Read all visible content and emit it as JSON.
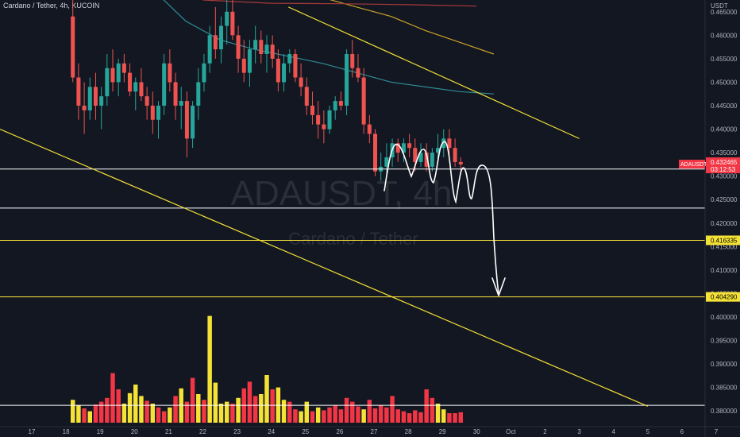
{
  "header": {
    "symbol_line": "Cardano / Tether, 4h, KUCOIN"
  },
  "watermark": {
    "symbol": "ADAUSDT, 4h",
    "name": "Cardano / Tether"
  },
  "colors": {
    "background": "#131722",
    "bull": "#26a69a",
    "bear": "#ef5350",
    "volume_up": "#f5e236",
    "volume_down": "#f23645",
    "trendline": "#f5e236",
    "hline_white": "#ffffff",
    "ma_teal": "#2e8c95",
    "ma_orange": "#c9a227",
    "ma_red": "#a83a3a",
    "axis_text": "#b2b5be",
    "label_text": "#000000",
    "current_label_bg": "#f23645"
  },
  "chart_data": {
    "type": "candlestick",
    "price_axis": {
      "unit": "USDT",
      "range": [
        0.3775,
        0.4675
      ],
      "ticks": [
        "0.465000",
        "0.460000",
        "0.455000",
        "0.450000",
        "0.445000",
        "0.440000",
        "0.435000",
        "0.430000",
        "0.425000",
        "0.420000",
        "0.415000",
        "0.410000",
        "0.405000",
        "0.400000",
        "0.395000",
        "0.390000",
        "0.385000",
        "0.380000"
      ]
    },
    "time_axis": {
      "labels": [
        {
          "text": "17",
          "x": 0
        },
        {
          "text": "18",
          "x": 1
        },
        {
          "text": "19",
          "x": 2
        },
        {
          "text": "20",
          "x": 3
        },
        {
          "text": "21",
          "x": 4
        },
        {
          "text": "22",
          "x": 5
        },
        {
          "text": "23",
          "x": 6
        },
        {
          "text": "24",
          "x": 7
        },
        {
          "text": "25",
          "x": 8
        },
        {
          "text": "26",
          "x": 9
        },
        {
          "text": "27",
          "x": 10
        },
        {
          "text": "28",
          "x": 11
        },
        {
          "text": "29",
          "x": 12
        },
        {
          "text": "30",
          "x": 13
        },
        {
          "text": "Oct",
          "x": 14
        },
        {
          "text": "2",
          "x": 15
        },
        {
          "text": "3",
          "x": 16
        },
        {
          "text": "4",
          "x": 17
        },
        {
          "text": "5",
          "x": 18
        },
        {
          "text": "6",
          "x": 19
        },
        {
          "text": "7",
          "x": 20
        }
      ]
    },
    "candles": [
      {
        "o": 0.464,
        "h": 0.468,
        "l": 0.45,
        "c": 0.451
      },
      {
        "o": 0.451,
        "h": 0.454,
        "l": 0.442,
        "c": 0.445
      },
      {
        "o": 0.445,
        "h": 0.45,
        "l": 0.439,
        "c": 0.444
      },
      {
        "o": 0.444,
        "h": 0.451,
        "l": 0.442,
        "c": 0.449
      },
      {
        "o": 0.449,
        "h": 0.452,
        "l": 0.442,
        "c": 0.445
      },
      {
        "o": 0.445,
        "h": 0.449,
        "l": 0.44,
        "c": 0.447
      },
      {
        "o": 0.447,
        "h": 0.456,
        "l": 0.445,
        "c": 0.453
      },
      {
        "o": 0.453,
        "h": 0.457,
        "l": 0.448,
        "c": 0.45
      },
      {
        "o": 0.45,
        "h": 0.455,
        "l": 0.447,
        "c": 0.454
      },
      {
        "o": 0.454,
        "h": 0.456,
        "l": 0.45,
        "c": 0.452
      },
      {
        "o": 0.452,
        "h": 0.454,
        "l": 0.447,
        "c": 0.448
      },
      {
        "o": 0.448,
        "h": 0.451,
        "l": 0.444,
        "c": 0.45
      },
      {
        "o": 0.45,
        "h": 0.453,
        "l": 0.446,
        "c": 0.447
      },
      {
        "o": 0.447,
        "h": 0.449,
        "l": 0.442,
        "c": 0.445
      },
      {
        "o": 0.445,
        "h": 0.448,
        "l": 0.439,
        "c": 0.442
      },
      {
        "o": 0.442,
        "h": 0.446,
        "l": 0.438,
        "c": 0.445
      },
      {
        "o": 0.445,
        "h": 0.456,
        "l": 0.443,
        "c": 0.454
      },
      {
        "o": 0.454,
        "h": 0.457,
        "l": 0.448,
        "c": 0.45
      },
      {
        "o": 0.45,
        "h": 0.452,
        "l": 0.442,
        "c": 0.445
      },
      {
        "o": 0.445,
        "h": 0.449,
        "l": 0.44,
        "c": 0.446
      },
      {
        "o": 0.446,
        "h": 0.448,
        "l": 0.434,
        "c": 0.438
      },
      {
        "o": 0.438,
        "h": 0.446,
        "l": 0.436,
        "c": 0.445
      },
      {
        "o": 0.445,
        "h": 0.453,
        "l": 0.442,
        "c": 0.45
      },
      {
        "o": 0.45,
        "h": 0.456,
        "l": 0.448,
        "c": 0.454
      },
      {
        "o": 0.454,
        "h": 0.462,
        "l": 0.452,
        "c": 0.46
      },
      {
        "o": 0.46,
        "h": 0.466,
        "l": 0.455,
        "c": 0.457
      },
      {
        "o": 0.457,
        "h": 0.464,
        "l": 0.454,
        "c": 0.462
      },
      {
        "o": 0.462,
        "h": 0.468,
        "l": 0.458,
        "c": 0.465
      },
      {
        "o": 0.465,
        "h": 0.468,
        "l": 0.459,
        "c": 0.46
      },
      {
        "o": 0.46,
        "h": 0.462,
        "l": 0.452,
        "c": 0.455
      },
      {
        "o": 0.455,
        "h": 0.459,
        "l": 0.45,
        "c": 0.452
      },
      {
        "o": 0.452,
        "h": 0.459,
        "l": 0.449,
        "c": 0.457
      },
      {
        "o": 0.457,
        "h": 0.462,
        "l": 0.454,
        "c": 0.459
      },
      {
        "o": 0.459,
        "h": 0.461,
        "l": 0.454,
        "c": 0.456
      },
      {
        "o": 0.456,
        "h": 0.46,
        "l": 0.452,
        "c": 0.458
      },
      {
        "o": 0.458,
        "h": 0.46,
        "l": 0.453,
        "c": 0.455
      },
      {
        "o": 0.455,
        "h": 0.457,
        "l": 0.448,
        "c": 0.45
      },
      {
        "o": 0.45,
        "h": 0.456,
        "l": 0.448,
        "c": 0.454
      },
      {
        "o": 0.454,
        "h": 0.457,
        "l": 0.452,
        "c": 0.456
      },
      {
        "o": 0.456,
        "h": 0.457,
        "l": 0.45,
        "c": 0.451
      },
      {
        "o": 0.451,
        "h": 0.454,
        "l": 0.447,
        "c": 0.449
      },
      {
        "o": 0.449,
        "h": 0.451,
        "l": 0.443,
        "c": 0.445
      },
      {
        "o": 0.445,
        "h": 0.448,
        "l": 0.441,
        "c": 0.443
      },
      {
        "o": 0.443,
        "h": 0.446,
        "l": 0.438,
        "c": 0.441
      },
      {
        "o": 0.441,
        "h": 0.444,
        "l": 0.437,
        "c": 0.44
      },
      {
        "o": 0.44,
        "h": 0.445,
        "l": 0.439,
        "c": 0.444
      },
      {
        "o": 0.444,
        "h": 0.447,
        "l": 0.442,
        "c": 0.446
      },
      {
        "o": 0.446,
        "h": 0.448,
        "l": 0.444,
        "c": 0.445
      },
      {
        "o": 0.445,
        "h": 0.457,
        "l": 0.443,
        "c": 0.456
      },
      {
        "o": 0.456,
        "h": 0.459,
        "l": 0.451,
        "c": 0.453
      },
      {
        "o": 0.453,
        "h": 0.456,
        "l": 0.45,
        "c": 0.451
      },
      {
        "o": 0.451,
        "h": 0.453,
        "l": 0.439,
        "c": 0.441
      },
      {
        "o": 0.441,
        "h": 0.443,
        "l": 0.437,
        "c": 0.439
      },
      {
        "o": 0.439,
        "h": 0.44,
        "l": 0.43,
        "c": 0.431
      },
      {
        "o": 0.431,
        "h": 0.435,
        "l": 0.429,
        "c": 0.432
      },
      {
        "o": 0.432,
        "h": 0.437,
        "l": 0.43,
        "c": 0.434
      },
      {
        "o": 0.434,
        "h": 0.438,
        "l": 0.432,
        "c": 0.437
      },
      {
        "o": 0.437,
        "h": 0.438,
        "l": 0.433,
        "c": 0.435
      },
      {
        "o": 0.435,
        "h": 0.438,
        "l": 0.433,
        "c": 0.437
      },
      {
        "o": 0.437,
        "h": 0.439,
        "l": 0.434,
        "c": 0.436
      },
      {
        "o": 0.436,
        "h": 0.438,
        "l": 0.431,
        "c": 0.433
      },
      {
        "o": 0.433,
        "h": 0.437,
        "l": 0.432,
        "c": 0.435
      },
      {
        "o": 0.435,
        "h": 0.437,
        "l": 0.431,
        "c": 0.432
      },
      {
        "o": 0.432,
        "h": 0.436,
        "l": 0.431,
        "c": 0.435
      },
      {
        "o": 0.435,
        "h": 0.439,
        "l": 0.433,
        "c": 0.436
      },
      {
        "o": 0.436,
        "h": 0.44,
        "l": 0.434,
        "c": 0.438
      },
      {
        "o": 0.438,
        "h": 0.44,
        "l": 0.434,
        "c": 0.436
      },
      {
        "o": 0.436,
        "h": 0.438,
        "l": 0.432,
        "c": 0.433
      },
      {
        "o": 0.433,
        "h": 0.434,
        "l": 0.431,
        "c": 0.4325
      }
    ],
    "volumes": [
      {
        "v": 2.4,
        "up": true
      },
      {
        "v": 1.8,
        "up": true
      },
      {
        "v": 1.5,
        "up": false
      },
      {
        "v": 1.2,
        "up": true
      },
      {
        "v": 1.9,
        "up": false
      },
      {
        "v": 2.2,
        "up": false
      },
      {
        "v": 2.6,
        "up": false
      },
      {
        "v": 5.2,
        "up": false
      },
      {
        "v": 3.5,
        "up": false
      },
      {
        "v": 2.0,
        "up": true
      },
      {
        "v": 3.1,
        "up": true
      },
      {
        "v": 4.0,
        "up": true
      },
      {
        "v": 2.8,
        "up": true
      },
      {
        "v": 2.3,
        "up": false
      },
      {
        "v": 2.0,
        "up": true
      },
      {
        "v": 1.6,
        "up": false
      },
      {
        "v": 1.2,
        "up": false
      },
      {
        "v": 1.6,
        "up": true
      },
      {
        "v": 2.8,
        "up": false
      },
      {
        "v": 3.6,
        "up": true
      },
      {
        "v": 2.2,
        "up": false
      },
      {
        "v": 4.7,
        "up": false
      },
      {
        "v": 3.0,
        "up": true
      },
      {
        "v": 2.4,
        "up": false
      },
      {
        "v": 11.2,
        "up": true
      },
      {
        "v": 4.2,
        "up": true
      },
      {
        "v": 2.0,
        "up": true
      },
      {
        "v": 2.2,
        "up": true
      },
      {
        "v": 2.0,
        "up": false
      },
      {
        "v": 2.6,
        "up": true
      },
      {
        "v": 3.6,
        "up": false
      },
      {
        "v": 4.3,
        "up": false
      },
      {
        "v": 2.8,
        "up": false
      },
      {
        "v": 3.0,
        "up": true
      },
      {
        "v": 5.0,
        "up": true
      },
      {
        "v": 3.5,
        "up": false
      },
      {
        "v": 3.7,
        "up": true
      },
      {
        "v": 2.4,
        "up": true
      },
      {
        "v": 2.2,
        "up": false
      },
      {
        "v": 1.4,
        "up": false
      },
      {
        "v": 1.2,
        "up": true
      },
      {
        "v": 2.2,
        "up": true
      },
      {
        "v": 1.2,
        "up": false
      },
      {
        "v": 1.6,
        "up": true
      },
      {
        "v": 1.3,
        "up": false
      },
      {
        "v": 1.6,
        "up": false
      },
      {
        "v": 1.8,
        "up": false
      },
      {
        "v": 1.4,
        "up": false
      },
      {
        "v": 2.6,
        "up": false
      },
      {
        "v": 2.2,
        "up": false
      },
      {
        "v": 1.7,
        "up": false
      },
      {
        "v": 1.4,
        "up": true
      },
      {
        "v": 2.4,
        "up": false
      },
      {
        "v": 1.5,
        "up": false
      },
      {
        "v": 1.8,
        "up": false
      },
      {
        "v": 1.6,
        "up": false
      },
      {
        "v": 2.8,
        "up": false
      },
      {
        "v": 1.4,
        "up": false
      },
      {
        "v": 1.2,
        "up": false
      },
      {
        "v": 1.0,
        "up": false
      },
      {
        "v": 1.3,
        "up": false
      },
      {
        "v": 1.1,
        "up": false
      },
      {
        "v": 3.5,
        "up": false
      },
      {
        "v": 2.6,
        "up": false
      },
      {
        "v": 2.0,
        "up": true
      },
      {
        "v": 1.4,
        "up": true
      },
      {
        "v": 1.0,
        "up": false
      },
      {
        "v": 1.0,
        "up": false
      },
      {
        "v": 1.1,
        "up": false
      }
    ],
    "horizontal_lines": [
      {
        "price": 0.4315,
        "color": "#ffffff"
      },
      {
        "price": 0.4232,
        "color": "#ffffff"
      },
      {
        "price": 0.41633,
        "color": "#f5e236"
      },
      {
        "price": 0.40429,
        "color": "#f5e236"
      },
      {
        "price": 0.3812,
        "color": "#ffffff"
      }
    ],
    "trendlines": [
      {
        "from": {
          "t": -3.5,
          "p": 0.448
        },
        "to": {
          "t": 18.0,
          "p": 0.381
        }
      },
      {
        "from": {
          "t": 7.5,
          "p": 0.466
        },
        "to": {
          "t": 16.0,
          "p": 0.438
        }
      }
    ],
    "moving_averages": [
      {
        "color": "#2e8c95",
        "points": [
          [
            3.5,
            0.47
          ],
          [
            4.5,
            0.463
          ],
          [
            5.5,
            0.459
          ],
          [
            6.5,
            0.457
          ],
          [
            7.5,
            0.4555
          ],
          [
            8.5,
            0.454
          ],
          [
            9.5,
            0.452
          ],
          [
            10.5,
            0.45
          ],
          [
            11.5,
            0.449
          ],
          [
            12.5,
            0.448
          ],
          [
            13.5,
            0.4475
          ]
        ]
      },
      {
        "color": "#c9a227",
        "points": [
          [
            7.5,
            0.47
          ],
          [
            8.5,
            0.468
          ],
          [
            9.5,
            0.466
          ],
          [
            10.5,
            0.464
          ],
          [
            11.5,
            0.461
          ],
          [
            12.5,
            0.4585
          ],
          [
            13.5,
            0.456
          ]
        ]
      },
      {
        "color": "#a83a3a",
        "points": [
          [
            5.0,
            0.4675
          ],
          [
            7.0,
            0.4668
          ],
          [
            9.0,
            0.4667
          ],
          [
            11.0,
            0.4665
          ],
          [
            13.0,
            0.4662
          ]
        ]
      }
    ],
    "price_labels": [
      {
        "text": "0.416335",
        "price": 0.41633,
        "bg": "#f5e236"
      },
      {
        "text": "0.404290",
        "price": 0.40429,
        "bg": "#f5e236"
      }
    ],
    "current_price": {
      "symbol": "ADAUSDT",
      "price_text": "0.432465",
      "countdown": "03:12:53",
      "price": 0.43247
    }
  }
}
